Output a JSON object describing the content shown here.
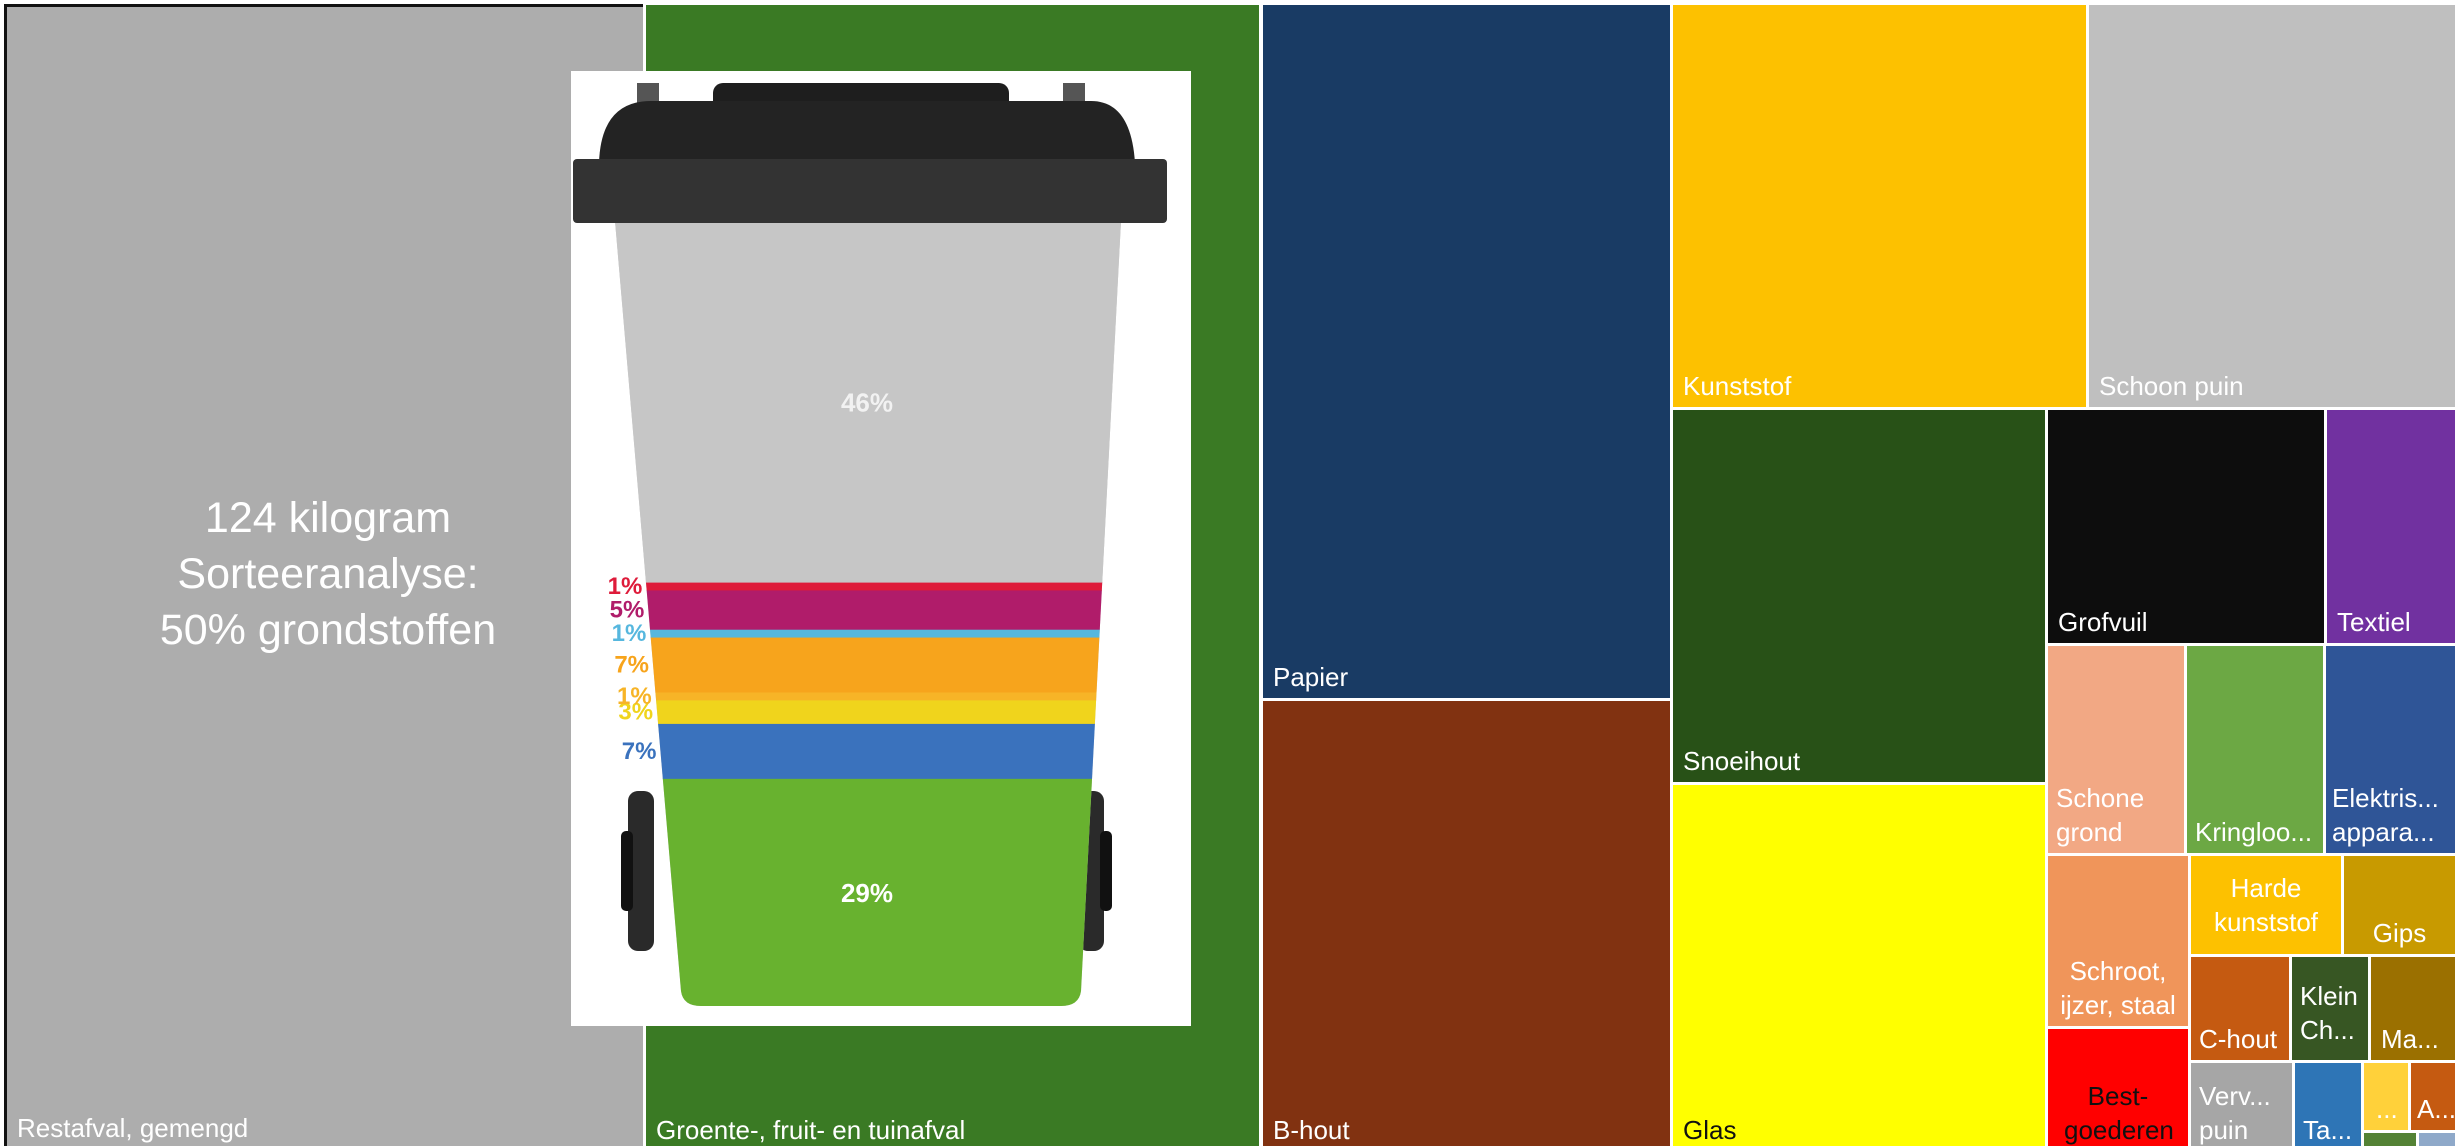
{
  "chart_data": {
    "type": "treemap",
    "tiles": [
      {
        "label": "Restafval, gemengd"
      },
      {
        "label": "Groente-, fruit- en tuinafval"
      },
      {
        "label": "Papier"
      },
      {
        "label": "B-hout"
      },
      {
        "label": "Kunststof"
      },
      {
        "label": "Schoon puin"
      },
      {
        "label": "Snoeihout"
      },
      {
        "label": "Glas"
      },
      {
        "label": "Grofvuil"
      },
      {
        "label": "Textiel"
      },
      {
        "label": "Schone grond"
      },
      {
        "label": "Kringloo..."
      },
      {
        "label": "Elektris... appara..."
      },
      {
        "label": "Schroot, ijzer, staal"
      },
      {
        "label": "Harde kunststof"
      },
      {
        "label": "Gips"
      },
      {
        "label": "C-hout"
      },
      {
        "label": "Klein Ch..."
      },
      {
        "label": "Ma..."
      },
      {
        "label": "Best-goederen"
      },
      {
        "label": "Verv... puin"
      },
      {
        "label": "Ta..."
      },
      {
        "label": "..."
      },
      {
        "label": "A..."
      }
    ],
    "annotation": [
      "124 kilogram",
      "Sorteeranalyse:",
      "50% grondstoffen"
    ]
  },
  "bin_chart": {
    "type": "stacked-bar",
    "values": [
      29,
      7,
      3,
      1,
      7,
      1,
      5,
      1,
      46
    ],
    "labels": [
      "29%",
      "7%",
      "3%",
      "1%",
      "7%",
      "1%",
      "5%",
      "1%",
      "46%"
    ],
    "colors": [
      "#68b22f",
      "#3a72bd",
      "#f0d41c",
      "#f7b427",
      "#f7a41c",
      "#56b7de",
      "#b01c6a",
      "#de1b3a",
      "#c6c6c6"
    ],
    "label_colors": [
      "#ffffff",
      "#3a72bd",
      "#f0d41c",
      "#f7b427",
      "#f7a41c",
      "#56b7de",
      "#b01c6a",
      "#de1b3a",
      "#f2f2f2"
    ]
  },
  "colors": {
    "restafval": "#adadad",
    "gft": "#3a7a24",
    "papier": "#193b64",
    "bhout": "#813211",
    "kunststof": "#fdc100",
    "schoonpuin": "#bfbfbf",
    "snoeihout": "#285117",
    "glas": "#ffff00",
    "grofvuil": "#0d0d0d",
    "textiel": "#7131a0",
    "schonegrond": "#f2a884",
    "kringloop": "#6ca844",
    "elektrisch": "#2f5597",
    "schroot": "#f0955a",
    "hardekunststof": "#fdc100",
    "gips": "#c89a00",
    "chout": "#c55a11",
    "kleinch": "#375623",
    "ma": "#9b7000",
    "best": "#ff0000",
    "vervpuin": "#a6a6a6",
    "ta": "#2e75b6",
    "dots": "#ffd13a",
    "a": "#c55a11",
    "sliver1": "#548235",
    "sliver2": "#8fa9c9"
  }
}
